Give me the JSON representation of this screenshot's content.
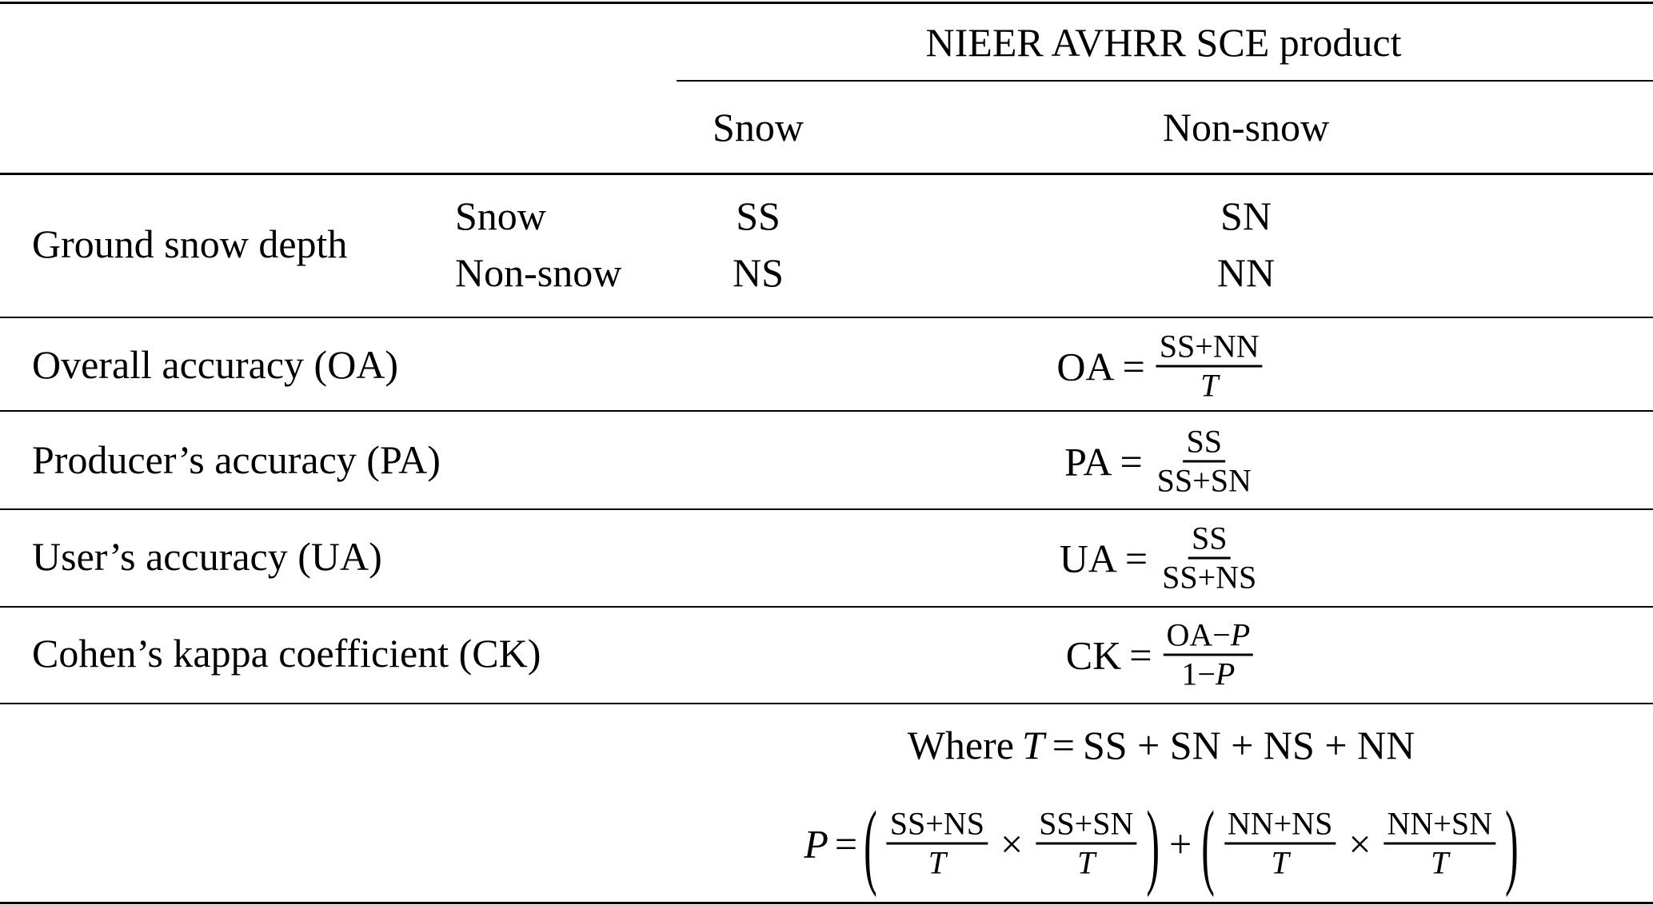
{
  "header": {
    "group_label": "NIEER AVHRR SCE product",
    "col_snow": "Snow",
    "col_nonsnow": "Non-snow"
  },
  "confusion": {
    "row_group": "Ground snow depth",
    "row_snow": "Snow",
    "row_nonsnow": "Non-snow",
    "ss": "SS",
    "sn": "SN",
    "ns": "NS",
    "nn": "NN"
  },
  "metrics": [
    {
      "label": "Overall accuracy (OA)",
      "lhs": "OA",
      "num": "SS+NN",
      "den": "T"
    },
    {
      "label": "Producer’s accuracy (PA)",
      "lhs": "PA",
      "num": "SS",
      "den": "SS+SN"
    },
    {
      "label": "User’s accuracy (UA)",
      "lhs": "UA",
      "num": "SS",
      "den": "SS+NS"
    },
    {
      "label": "Cohen’s kappa coefficient (CK)",
      "lhs": "CK",
      "num": "OA−P",
      "den": "1−P"
    }
  ],
  "footnote": {
    "where": "Where",
    "t_var": "T",
    "equals": "=",
    "t_expr": "SS + SN + NS + NN",
    "p_var": "P",
    "p_terms": [
      {
        "num": "SS+NS",
        "den": "T"
      },
      {
        "num": "SS+SN",
        "den": "T"
      },
      {
        "num": "NN+NS",
        "den": "T"
      },
      {
        "num": "NN+SN",
        "den": "T"
      }
    ],
    "times": "×",
    "plus": "+",
    "lparen": "(",
    "rparen": ")"
  }
}
